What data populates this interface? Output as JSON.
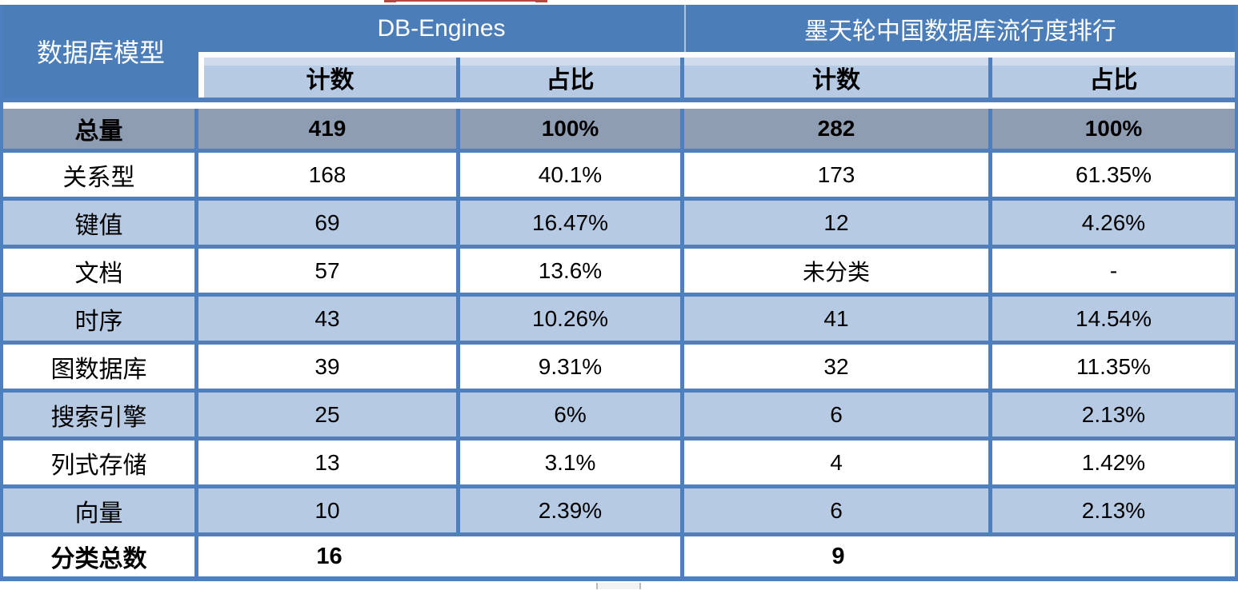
{
  "colors": {
    "header_blue": "#4b7db9",
    "border_blue": "#4e7fbf",
    "light_blue_row": "#b6cae3",
    "total_row_gray": "#8f9db3",
    "red_artifact": "#b84743"
  },
  "chart_data": {
    "type": "table",
    "corner_header": "数据库模型",
    "column_groups": [
      {
        "label": "DB-Engines",
        "columns": [
          "计数",
          "占比"
        ]
      },
      {
        "label": "墨天轮中国数据库流行度排行",
        "columns": [
          "计数",
          "占比"
        ]
      }
    ],
    "rows": [
      {
        "label": "总量",
        "values": [
          "419",
          "100%",
          "282",
          "100%"
        ],
        "emphasis": "total"
      },
      {
        "label": "关系型",
        "values": [
          "168",
          "40.1%",
          "173",
          "61.35%"
        ]
      },
      {
        "label": "键值",
        "values": [
          "69",
          "16.47%",
          "12",
          "4.26%"
        ]
      },
      {
        "label": "文档",
        "values": [
          "57",
          "13.6%",
          "未分类",
          "-"
        ]
      },
      {
        "label": "时序",
        "values": [
          "43",
          "10.26%",
          "41",
          "14.54%"
        ]
      },
      {
        "label": "图数据库",
        "values": [
          "39",
          "9.31%",
          "32",
          "11.35%"
        ]
      },
      {
        "label": "搜索引擎",
        "values": [
          "25",
          "6%",
          "6",
          "2.13%"
        ]
      },
      {
        "label": "列式存储",
        "values": [
          "13",
          "3.1%",
          "4",
          "1.42%"
        ]
      },
      {
        "label": "向量",
        "values": [
          "10",
          "2.39%",
          "6",
          "2.13%"
        ]
      }
    ],
    "footer": {
      "label": "分类总数",
      "values": [
        "16",
        "9"
      ]
    }
  }
}
